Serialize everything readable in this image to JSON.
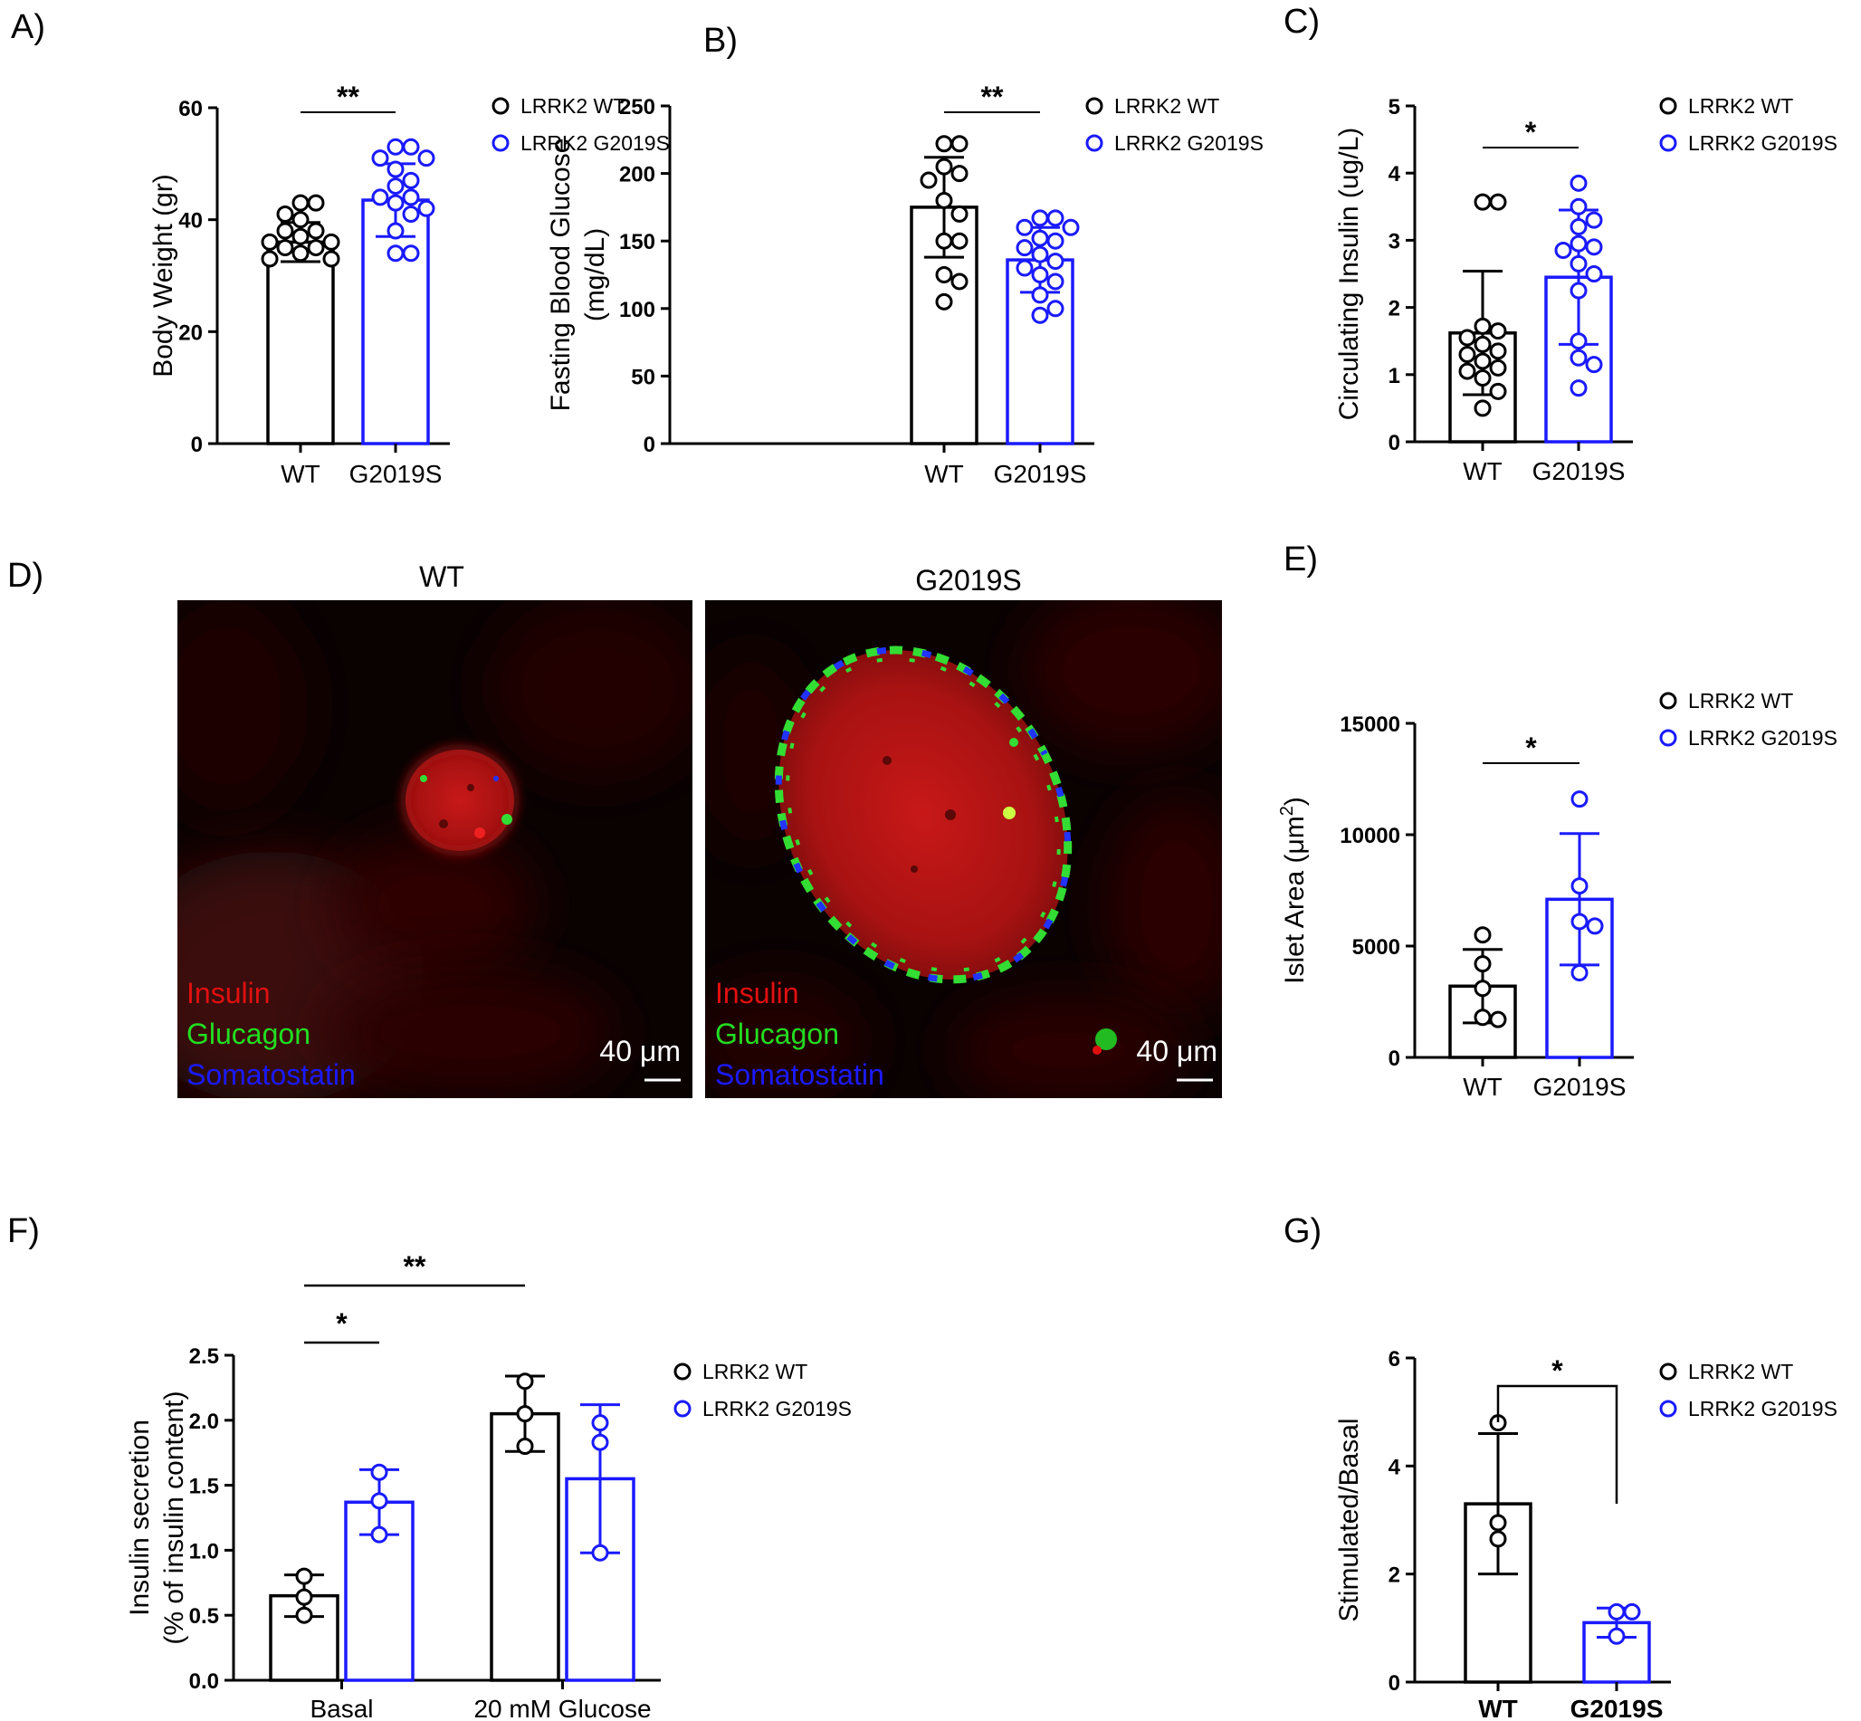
{
  "colors": {
    "wt": "#000000",
    "g2019s": "#1a1aff",
    "insulin": "#e01010",
    "glucagon": "#22dd22",
    "somatostatin": "#1a1aff"
  },
  "legend": {
    "wt": "LRRK2 WT",
    "g2019s": "LRRK2 G2019S"
  },
  "panel_d": {
    "letter": "D)",
    "images": [
      {
        "title": "WT",
        "scale_bar": "40 μm",
        "stains": [
          "Insulin",
          "Glucagon",
          "Somatostatin"
        ]
      },
      {
        "title": "G2019S",
        "scale_bar": "40 μm",
        "stains": [
          "Insulin",
          "Glucagon",
          "Somatostatin"
        ]
      }
    ]
  },
  "chart_data": [
    {
      "id": "A",
      "letter": "A)",
      "type": "bar",
      "ylabel": "Body Weight (gr)",
      "ylim": [
        0,
        60
      ],
      "yticks": [
        0,
        20,
        40,
        60
      ],
      "categories": [
        "WT",
        "G2019S"
      ],
      "series": [
        {
          "name": "LRRK2 WT",
          "mean": 36,
          "sd": 3.5,
          "points": [
            43,
            43,
            41,
            40,
            38,
            38,
            37,
            36,
            36,
            35,
            35,
            34,
            33,
            33
          ]
        },
        {
          "name": "LRRK2 G2019S",
          "mean": 43.5,
          "sd": 6.5,
          "points": [
            53,
            53,
            51,
            51,
            49,
            47,
            46,
            44,
            44,
            43,
            42,
            41,
            38,
            34,
            34
          ]
        }
      ],
      "significance": [
        {
          "label": "**",
          "between": [
            0,
            1
          ]
        }
      ]
    },
    {
      "id": "B",
      "letter": "B)",
      "type": "bar",
      "ylabel": "Fasting Blood Glucose\n(mg/dL)",
      "ylim": [
        0,
        250
      ],
      "yticks": [
        0,
        50,
        100,
        150,
        200,
        250
      ],
      "categories": [
        "WT",
        "G2019S"
      ],
      "series": [
        {
          "name": "LRRK2 WT",
          "mean": 175,
          "sd": 37,
          "points": [
            222,
            222,
            205,
            200,
            195,
            180,
            170,
            150,
            150,
            125,
            120,
            105
          ]
        },
        {
          "name": "LRRK2 G2019S",
          "mean": 136,
          "sd": 24,
          "points": [
            167,
            167,
            160,
            160,
            152,
            150,
            145,
            140,
            135,
            130,
            125,
            120,
            110,
            100,
            95
          ]
        }
      ],
      "significance": [
        {
          "label": "**",
          "between": [
            0,
            1
          ]
        }
      ]
    },
    {
      "id": "C",
      "letter": "C)",
      "type": "bar",
      "ylabel": "Circulating Insulin (ug/L)",
      "ylim": [
        0,
        5
      ],
      "yticks": [
        0,
        1,
        2,
        3,
        4,
        5
      ],
      "categories": [
        "WT",
        "G2019S"
      ],
      "series": [
        {
          "name": "LRRK2 WT",
          "mean": 1.62,
          "sd": 0.92,
          "points": [
            3.57,
            3.57,
            1.72,
            1.65,
            1.55,
            1.45,
            1.35,
            1.3,
            1.2,
            1.1,
            1.05,
            0.95,
            0.75,
            0.5
          ]
        },
        {
          "name": "LRRK2 G2019S",
          "mean": 2.45,
          "sd": 1.0,
          "points": [
            3.85,
            3.5,
            3.3,
            3.2,
            2.95,
            2.9,
            2.85,
            2.65,
            2.5,
            2.25,
            1.5,
            1.25,
            1.15,
            0.8
          ]
        }
      ],
      "significance": [
        {
          "label": "*",
          "between": [
            0,
            1
          ]
        }
      ]
    },
    {
      "id": "E",
      "letter": "E)",
      "type": "bar",
      "ylabel": "Islet Area (μm²)",
      "ylim": [
        0,
        15000
      ],
      "yticks": [
        0,
        5000,
        10000,
        15000
      ],
      "categories": [
        "WT",
        "G2019S"
      ],
      "series": [
        {
          "name": "LRRK2 WT",
          "mean": 3200,
          "sd": 1650,
          "points": [
            5500,
            4200,
            3100,
            1800,
            1700
          ]
        },
        {
          "name": "LRRK2 G2019S",
          "mean": 7100,
          "sd": 2950,
          "points": [
            11600,
            7700,
            6100,
            5900,
            3800
          ]
        }
      ],
      "significance": [
        {
          "label": "*",
          "between": [
            0,
            1
          ]
        }
      ]
    },
    {
      "id": "F",
      "letter": "F)",
      "type": "bar",
      "ylabel": "Insulin secretion\n(% of insulin content)",
      "ylim": [
        0,
        2.5
      ],
      "yticks": [
        0.0,
        0.5,
        1.0,
        1.5,
        2.0,
        2.5
      ],
      "categories": [
        "Basal",
        "20 mM Glucose"
      ],
      "series": [
        {
          "name": "LRRK2 WT",
          "means": [
            0.65,
            2.05
          ],
          "sds": [
            0.16,
            0.29
          ],
          "points": [
            [
              0.8,
              0.64,
              0.5
            ],
            [
              2.3,
              2.05,
              1.8
            ]
          ]
        },
        {
          "name": "LRRK2 G2019S",
          "means": [
            1.37,
            1.55
          ],
          "sds": [
            0.25,
            0.57
          ],
          "points": [
            [
              1.6,
              1.38,
              1.12
            ],
            [
              1.98,
              1.83,
              0.98
            ]
          ]
        }
      ],
      "significance": [
        {
          "label": "*",
          "from": [
            0,
            0
          ],
          "to": [
            0,
            1
          ]
        },
        {
          "label": "**",
          "from": [
            0,
            0
          ],
          "to": [
            1,
            0
          ]
        }
      ]
    },
    {
      "id": "G",
      "letter": "G)",
      "type": "bar",
      "ylabel": "Stimulated/Basal",
      "ylim": [
        0,
        6
      ],
      "yticks": [
        0,
        2,
        4,
        6
      ],
      "categories": [
        "WT",
        "G2019S"
      ],
      "series": [
        {
          "name": "LRRK2 WT",
          "mean": 3.3,
          "sd": 1.3,
          "points": [
            4.8,
            2.95,
            2.65
          ]
        },
        {
          "name": "LRRK2 G2019S",
          "mean": 1.1,
          "sd": 0.27,
          "points": [
            1.3,
            1.3,
            0.85
          ]
        }
      ],
      "significance": [
        {
          "label": "*",
          "between": [
            0,
            1
          ],
          "bracket": true
        }
      ]
    }
  ]
}
